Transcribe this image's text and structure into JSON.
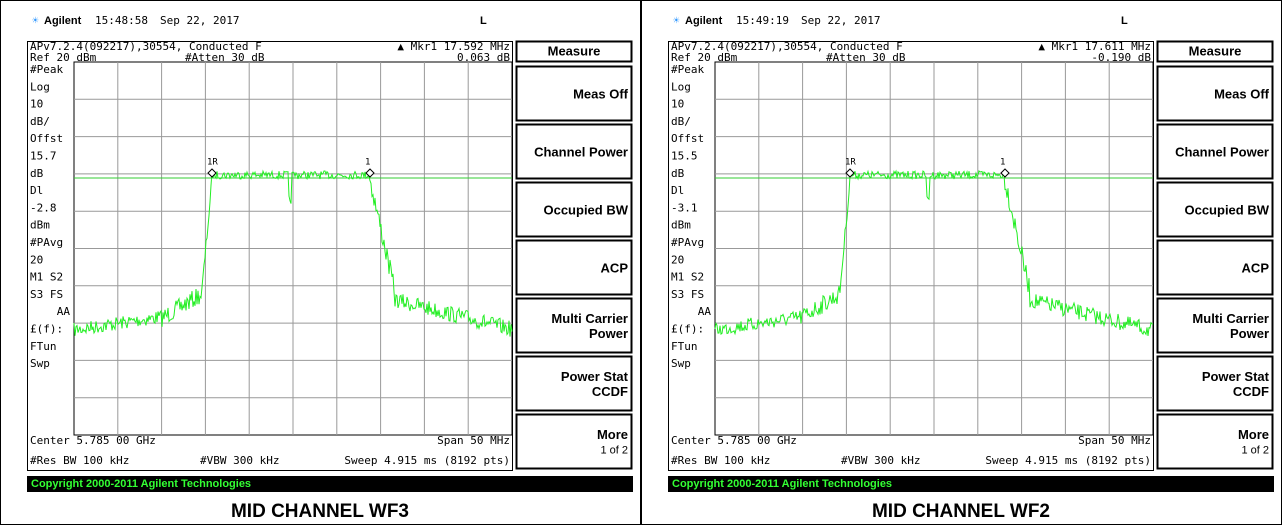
{
  "panels": [
    {
      "header": {
        "brand": "Agilent",
        "time": "15:48:58",
        "date": "Sep 22, 2017",
        "mode": "L"
      },
      "info": {
        "line1": "APv7.2.4(092217),30554, Conducted F",
        "marker": "▲ Mkr1  17.592 MHz",
        "ref": "Ref 20 dBm",
        "atten": "#Atten 30 dB",
        "marker_value": "0.063 dB"
      },
      "side_labels": [
        "#Peak",
        "Log",
        "10",
        "dB/",
        "Offst",
        "15.7",
        "dB",
        "Dl",
        "-2.8",
        "dBm",
        "#PAvg",
        "20",
        "M1  S2",
        "S3  FS",
        "AA",
        "£(f):",
        "FTun",
        "Swp"
      ],
      "markers": [
        "1R",
        "1"
      ],
      "center": "Center 5.785 00 GHz",
      "span": "Span 50 MHz",
      "rbw": "#Res BW 100 kHz",
      "vbw": "#VBW 300 kHz",
      "sweep": "Sweep 4.915 ms (8192 pts)",
      "copyright": "Copyright 2000-2011 Agilent Technologies",
      "menu": {
        "title": "Measure",
        "items": [
          [
            "Meas Off"
          ],
          [
            "Channel Power"
          ],
          [
            "Occupied BW"
          ],
          [
            "ACP"
          ],
          [
            "Multi Carrier",
            "Power"
          ],
          [
            "Power Stat",
            "CCDF"
          ],
          [
            "More",
            "1 of 2"
          ]
        ]
      },
      "caption": "MID CHANNEL WF3"
    },
    {
      "header": {
        "brand": "Agilent",
        "time": "15:49:19",
        "date": "Sep 22, 2017",
        "mode": "L"
      },
      "info": {
        "line1": "APv7.2.4(092217),30554, Conducted F",
        "marker": "▲ Mkr1  17.611 MHz",
        "ref": "Ref 20 dBm",
        "atten": "#Atten 30 dB",
        "marker_value": "-0.190 dB"
      },
      "side_labels": [
        "#Peak",
        "Log",
        "10",
        "dB/",
        "Offst",
        "15.5",
        "dB",
        "Dl",
        "-3.1",
        "dBm",
        "#PAvg",
        "20",
        "M1  S2",
        "S3  FS",
        "AA",
        "£(f):",
        "FTun",
        "Swp"
      ],
      "markers": [
        "1R",
        "1"
      ],
      "center": "Center 5.785 00 GHz",
      "span": "Span 50 MHz",
      "rbw": "#Res BW 100 kHz",
      "vbw": "#VBW 300 kHz",
      "sweep": "Sweep 4.915 ms (8192 pts)",
      "copyright": "Copyright 2000-2011 Agilent Technologies",
      "menu": {
        "title": "Measure",
        "items": [
          [
            "Meas Off"
          ],
          [
            "Channel Power"
          ],
          [
            "Occupied BW"
          ],
          [
            "ACP"
          ],
          [
            "Multi Carrier",
            "Power"
          ],
          [
            "Power Stat",
            "CCDF"
          ],
          [
            "More",
            "1 of 2"
          ]
        ]
      },
      "caption": "MID CHANNEL WF2"
    }
  ]
}
